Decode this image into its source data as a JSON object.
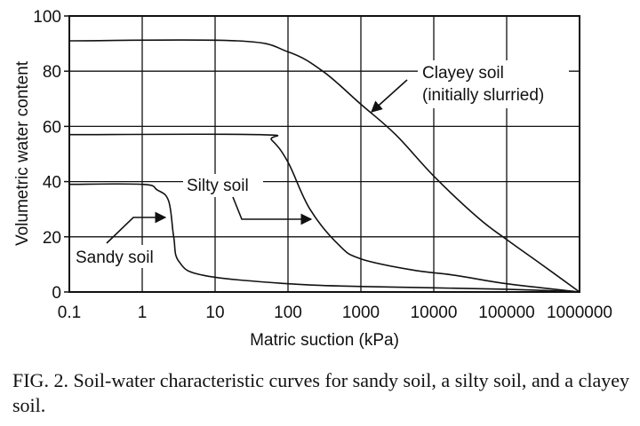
{
  "chart_data": {
    "type": "line",
    "title": "",
    "xlabel": "Matric suction (kPa)",
    "ylabel": "Volumetric water content",
    "x_scale": "log",
    "xlim": [
      0.1,
      1000000
    ],
    "ylim": [
      0,
      100
    ],
    "x_ticks": [
      "0.1",
      "1",
      "10",
      "100",
      "1000",
      "10000",
      "100000",
      "1000000"
    ],
    "y_ticks": [
      "0",
      "20",
      "40",
      "60",
      "80",
      "100"
    ],
    "grid": true,
    "legend": "none",
    "series": [
      {
        "name": "Clayey soil",
        "points": [
          [
            0.1,
            91
          ],
          [
            20,
            91
          ],
          [
            100,
            87
          ],
          [
            300,
            80
          ],
          [
            1000,
            68
          ],
          [
            3000,
            57
          ],
          [
            10000,
            42
          ],
          [
            40000,
            27
          ],
          [
            100000,
            19
          ],
          [
            300000,
            10
          ],
          [
            1000000,
            0
          ]
        ]
      },
      {
        "name": "Silty soil",
        "points": [
          [
            0.1,
            57
          ],
          [
            40,
            57
          ],
          [
            60,
            55
          ],
          [
            100,
            47
          ],
          [
            200,
            30
          ],
          [
            500,
            17
          ],
          [
            1000,
            12
          ],
          [
            5000,
            8
          ],
          [
            20000,
            6
          ],
          [
            100000,
            3
          ],
          [
            1000000,
            0
          ]
        ]
      },
      {
        "name": "Sandy soil",
        "points": [
          [
            0.1,
            39
          ],
          [
            1,
            39
          ],
          [
            1.6,
            37
          ],
          [
            2.3,
            33
          ],
          [
            2.7,
            20
          ],
          [
            3.2,
            11
          ],
          [
            7,
            6
          ],
          [
            100,
            3
          ],
          [
            1000,
            2
          ],
          [
            100000,
            1
          ],
          [
            1000000,
            0
          ]
        ]
      }
    ],
    "annotations": [
      {
        "lines": [
          "Clayey soil",
          "(initially slurried)"
        ],
        "target": "Clayey soil"
      },
      {
        "lines": [
          "Silty soil"
        ],
        "target": "Silty soil"
      },
      {
        "lines": [
          "Sandy soil"
        ],
        "target": "Sandy soil"
      }
    ]
  },
  "caption": "FIG. 2. Soil-water characteristic curves for sandy soil, a silty soil, and a clayey soil."
}
